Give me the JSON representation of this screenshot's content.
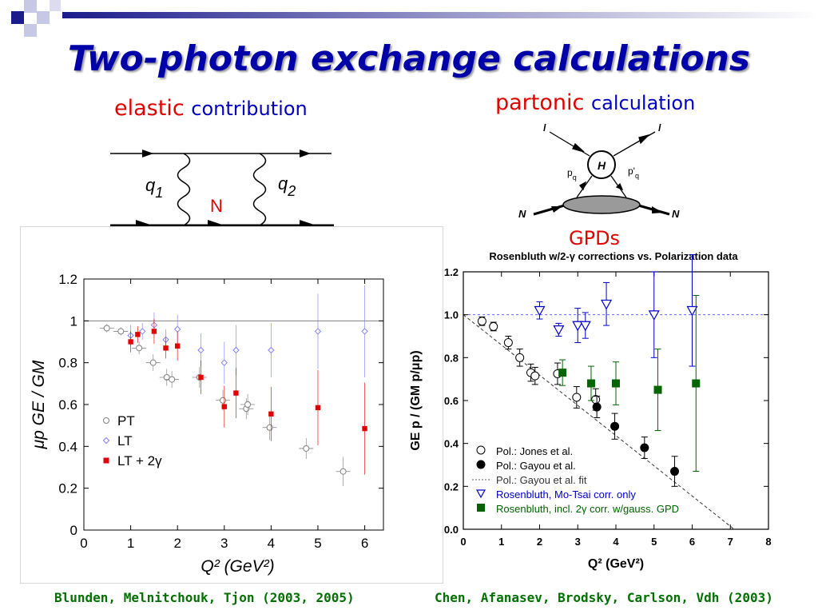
{
  "slide": {
    "title": "Two-photon exchange calculations",
    "elastic_word": "elastic",
    "elastic_rest": "contribution",
    "partonic_word": "partonic",
    "partonic_rest": "calculation",
    "gpds_label": "GPDs",
    "credit_left": "Blunden, Melnitchouk, Tjon (2003, 2005)",
    "credit_right": "Chen, Afanasev, Brodsky, Carlson, Vdh (2003)",
    "colors": {
      "title": "#0000a8",
      "accent_red": "#e00000",
      "credits": "#007000",
      "deco_blue": "#1b1b8c"
    }
  },
  "diagram_elastic": {
    "q1": "q",
    "q1_sub": "1",
    "q2": "q",
    "q2_sub": "2",
    "n_label": "N"
  },
  "diagram_partonic": {
    "l_in": "l",
    "l_out": "l",
    "h": "H",
    "pq": "p",
    "pq_sub": "q",
    "pq2": "p'",
    "pq2_sub": "q",
    "n_in": "N",
    "n_out": "N"
  },
  "chart_data": [
    {
      "type": "scatter",
      "title": "",
      "xlabel": "Q²  (GeV²)",
      "ylabel": "μp GE / GM",
      "xlim": [
        0,
        6.4
      ],
      "ylim": [
        0,
        1.2
      ],
      "xticks": [
        "0",
        "1",
        "2",
        "3",
        "4",
        "5",
        "6"
      ],
      "yticks": [
        "0",
        "0.2",
        "0.4",
        "0.6",
        "0.8",
        "1",
        "1.2"
      ],
      "reference_line": 1.0,
      "legend_position": "bottom-left",
      "series": [
        {
          "name": "PT",
          "marker": "open-circle",
          "color": "#808080",
          "points": [
            {
              "x": 0.49,
              "y": 0.965,
              "ey": 0.02
            },
            {
              "x": 0.79,
              "y": 0.95,
              "ey": 0.02
            },
            {
              "x": 1.18,
              "y": 0.87,
              "ey": 0.03
            },
            {
              "x": 1.48,
              "y": 0.8,
              "ey": 0.04
            },
            {
              "x": 1.77,
              "y": 0.73,
              "ey": 0.04
            },
            {
              "x": 1.88,
              "y": 0.72,
              "ey": 0.04
            },
            {
              "x": 2.47,
              "y": 0.73,
              "ey": 0.05
            },
            {
              "x": 2.97,
              "y": 0.62,
              "ey": 0.05
            },
            {
              "x": 3.47,
              "y": 0.58,
              "ey": 0.05
            },
            {
              "x": 3.5,
              "y": 0.6,
              "ey": 0.05
            },
            {
              "x": 3.97,
              "y": 0.49,
              "ey": 0.06
            },
            {
              "x": 4.75,
              "y": 0.39,
              "ey": 0.05
            },
            {
              "x": 5.54,
              "y": 0.28,
              "ey": 0.07
            }
          ]
        },
        {
          "name": "LT",
          "marker": "open-diamond",
          "color": "#8080ff",
          "points": [
            {
              "x": 1.0,
              "y": 0.93,
              "ey": 0.05
            },
            {
              "x": 1.25,
              "y": 0.95,
              "ey": 0.04
            },
            {
              "x": 1.5,
              "y": 0.98,
              "ey": 0.06
            },
            {
              "x": 1.75,
              "y": 0.91,
              "ey": 0.05
            },
            {
              "x": 2.0,
              "y": 0.96,
              "ey": 0.07
            },
            {
              "x": 2.5,
              "y": 0.86,
              "ey": 0.08
            },
            {
              "x": 3.0,
              "y": 0.8,
              "ey": 0.1
            },
            {
              "x": 3.25,
              "y": 0.86,
              "ey": 0.12
            },
            {
              "x": 4.0,
              "y": 0.86,
              "ey": 0.13
            },
            {
              "x": 5.0,
              "y": 0.95,
              "ey": 0.18
            },
            {
              "x": 6.0,
              "y": 0.95,
              "ey": 0.22
            }
          ]
        },
        {
          "name": "LT + 2γ",
          "marker": "filled-square",
          "color": "#e00000",
          "points": [
            {
              "x": 1.0,
              "y": 0.9,
              "ey": 0.05
            },
            {
              "x": 1.15,
              "y": 0.935,
              "ey": 0.04
            },
            {
              "x": 1.5,
              "y": 0.95,
              "ey": 0.06
            },
            {
              "x": 1.75,
              "y": 0.87,
              "ey": 0.05
            },
            {
              "x": 2.0,
              "y": 0.88,
              "ey": 0.07
            },
            {
              "x": 2.5,
              "y": 0.73,
              "ey": 0.08
            },
            {
              "x": 3.0,
              "y": 0.59,
              "ey": 0.1
            },
            {
              "x": 3.25,
              "y": 0.655,
              "ey": 0.12
            },
            {
              "x": 4.0,
              "y": 0.555,
              "ey": 0.13
            },
            {
              "x": 5.0,
              "y": 0.585,
              "ey": 0.18
            },
            {
              "x": 6.0,
              "y": 0.485,
              "ey": 0.22
            }
          ]
        }
      ]
    },
    {
      "type": "scatter",
      "title": "Rosenbluth w/2-γ corrections vs. Polarization data",
      "xlabel": "Q² (GeV²)",
      "ylabel": "GE p / (GM p/μp)",
      "xlim": [
        0,
        8
      ],
      "ylim": [
        0,
        1.2
      ],
      "xticks": [
        "0",
        "1",
        "2",
        "3",
        "4",
        "5",
        "6",
        "7",
        "8"
      ],
      "yticks": [
        "0.0",
        "0.2",
        "0.4",
        "0.6",
        "0.8",
        "1.0",
        "1.2"
      ],
      "reference_line": 1.0,
      "legend_position": "bottom-left",
      "fit": {
        "name": "Pol.: Gayou et al. fit",
        "x0": 0,
        "y0": 1.0,
        "x1": 7.1,
        "y1": 0.0
      },
      "series": [
        {
          "name": "Pol.: Jones et al.",
          "marker": "open-circle",
          "color": "#000000",
          "points": [
            {
              "x": 0.49,
              "y": 0.97,
              "ey": 0.02
            },
            {
              "x": 0.79,
              "y": 0.945,
              "ey": 0.02
            },
            {
              "x": 1.18,
              "y": 0.87,
              "ey": 0.03
            },
            {
              "x": 1.48,
              "y": 0.8,
              "ey": 0.04
            },
            {
              "x": 1.77,
              "y": 0.73,
              "ey": 0.04
            },
            {
              "x": 1.88,
              "y": 0.715,
              "ey": 0.04
            },
            {
              "x": 2.47,
              "y": 0.725,
              "ey": 0.05
            },
            {
              "x": 2.97,
              "y": 0.615,
              "ey": 0.05
            },
            {
              "x": 3.47,
              "y": 0.605,
              "ey": 0.05
            }
          ]
        },
        {
          "name": "Pol.: Gayou et al.",
          "marker": "filled-circle",
          "color": "#000000",
          "points": [
            {
              "x": 3.5,
              "y": 0.57,
              "ey": 0.05
            },
            {
              "x": 3.97,
              "y": 0.48,
              "ey": 0.06
            },
            {
              "x": 4.75,
              "y": 0.38,
              "ey": 0.05
            },
            {
              "x": 5.54,
              "y": 0.27,
              "ey": 0.07
            }
          ]
        },
        {
          "name": "Rosenbluth, Mo-Tsai corr. only",
          "marker": "open-triangle-down",
          "color": "#0000cc",
          "points": [
            {
              "x": 2.0,
              "y": 1.02,
              "ey": 0.04
            },
            {
              "x": 2.5,
              "y": 0.93,
              "ey": 0.03
            },
            {
              "x": 3.0,
              "y": 0.95,
              "ey": 0.08
            },
            {
              "x": 3.2,
              "y": 0.95,
              "ey": 0.06
            },
            {
              "x": 3.75,
              "y": 1.05,
              "ey": 0.1
            },
            {
              "x": 5.0,
              "y": 1.0,
              "ey": 0.2
            },
            {
              "x": 6.0,
              "y": 1.02,
              "ey": 0.26
            }
          ]
        },
        {
          "name": "Rosenbluth, incl. 2γ corr. w/gauss. GPD",
          "marker": "filled-square",
          "color": "#006400",
          "points": [
            {
              "x": 2.6,
              "y": 0.73,
              "ey": 0.06
            },
            {
              "x": 3.35,
              "y": 0.68,
              "ey": 0.08
            },
            {
              "x": 4.0,
              "y": 0.68,
              "ey": 0.1
            },
            {
              "x": 5.1,
              "y": 0.65,
              "ey": 0.19
            },
            {
              "x": 6.1,
              "y": 0.68,
              "ey": 0.41
            }
          ]
        }
      ]
    }
  ]
}
